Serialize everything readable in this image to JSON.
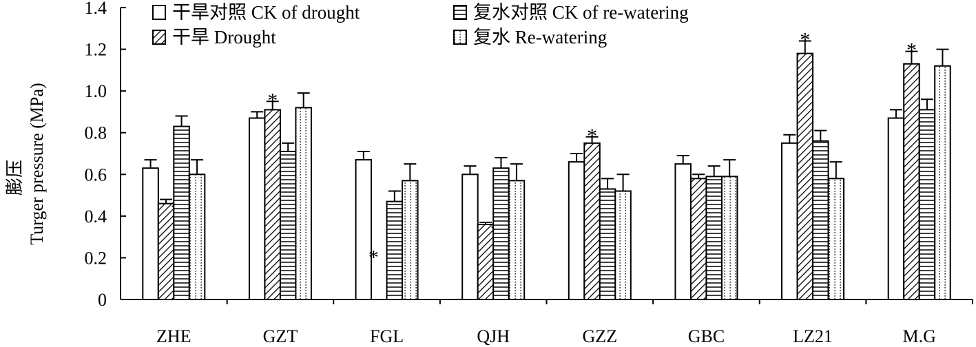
{
  "chart_data": {
    "type": "bar",
    "title": "",
    "xlabel": "",
    "ylabel_cn": "膨压",
    "ylabel": "Turger pressure (MPa)",
    "ylim": [
      0,
      1.4
    ],
    "yticks": [
      "0",
      "0.2",
      "0.4",
      "0.6",
      "0.8",
      "1.0",
      "1.2",
      "1.4"
    ],
    "grid": false,
    "legend_position": "top",
    "categories": [
      "ZHE",
      "GZT",
      "FGL",
      "QJH",
      "GZZ",
      "GBC",
      "LZ21",
      "M.G"
    ],
    "significance_mark": "*",
    "series": [
      {
        "name": "干旱对照 CK of drought",
        "pattern": "plain",
        "values": [
          0.63,
          0.87,
          0.67,
          0.6,
          0.66,
          0.65,
          0.75,
          0.87
        ],
        "errors": [
          0.04,
          0.03,
          0.04,
          0.04,
          0.04,
          0.04,
          0.04,
          0.04
        ]
      },
      {
        "name": "干旱 Drought",
        "pattern": "diagonal",
        "values": [
          0.46,
          0.91,
          0.0,
          0.36,
          0.75,
          0.58,
          1.18,
          1.13
        ],
        "errors": [
          0.02,
          0.04,
          0.0,
          0.01,
          0.03,
          0.02,
          0.06,
          0.06
        ],
        "significant": [
          true,
          true,
          true,
          true,
          true,
          true,
          true,
          true
        ]
      },
      {
        "name": "复水对照 CK of re-watering",
        "pattern": "horizontal",
        "values": [
          0.83,
          0.71,
          0.47,
          0.63,
          0.53,
          0.59,
          0.76,
          0.91
        ],
        "errors": [
          0.05,
          0.04,
          0.05,
          0.05,
          0.05,
          0.05,
          0.05,
          0.05
        ]
      },
      {
        "name": "复水 Re-watering",
        "pattern": "dotted",
        "values": [
          0.6,
          0.92,
          0.57,
          0.57,
          0.52,
          0.59,
          0.58,
          1.12
        ],
        "errors": [
          0.07,
          0.07,
          0.08,
          0.08,
          0.08,
          0.08,
          0.08,
          0.08
        ]
      }
    ]
  }
}
